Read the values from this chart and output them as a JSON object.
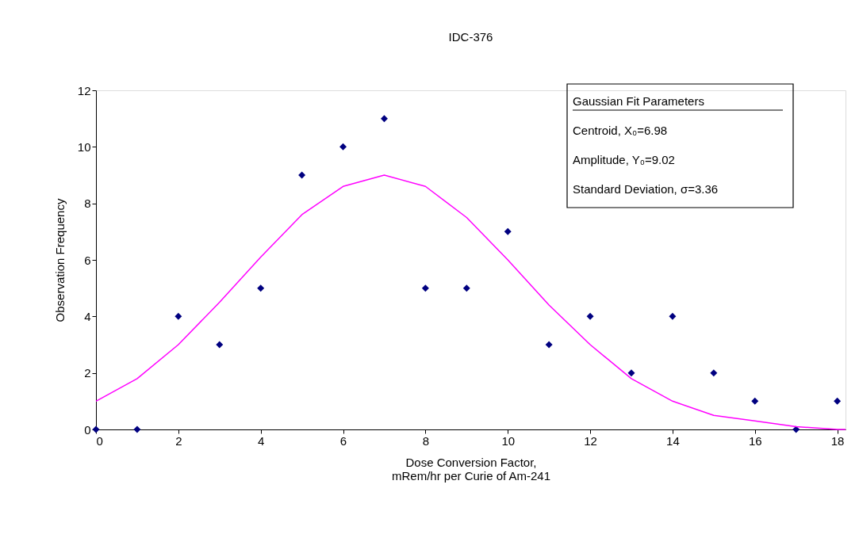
{
  "chart_data": {
    "type": "scatter",
    "title": "IDC-376",
    "xlabel": "Dose Conversion Factor,\nmRem/hr per Curie of Am-241",
    "ylabel": "Observation Frequency",
    "x": [
      0,
      1,
      2,
      3,
      4,
      5,
      6,
      7,
      8,
      9,
      10,
      11,
      12,
      13,
      14,
      15,
      16,
      17,
      18
    ],
    "series": [
      {
        "color": "#000080",
        "marker": "diamond",
        "values": [
          0,
          0,
          4,
          3,
          5,
          9,
          10,
          11,
          5,
          5,
          7,
          3,
          4,
          2,
          4,
          2,
          1,
          0,
          1
        ]
      },
      {
        "type": "line",
        "color": "#ff00ff",
        "marker": "none",
        "x": [
          0,
          1,
          2,
          3,
          4,
          5,
          6,
          7,
          8,
          9,
          10,
          11,
          12,
          13,
          14,
          15,
          16,
          17,
          18,
          18.2
        ],
        "values": [
          1.0,
          1.8,
          3.0,
          4.5,
          6.1,
          7.6,
          8.6,
          9.0,
          8.6,
          7.5,
          6.0,
          4.4,
          3.0,
          1.8,
          1.0,
          0.5,
          0.3,
          0.1,
          0.0,
          0.0
        ]
      }
    ],
    "xlim": [
      0,
      18.2
    ],
    "xticks": [
      0,
      2,
      4,
      6,
      8,
      10,
      12,
      14,
      16,
      18
    ],
    "ylim": [
      0,
      12
    ],
    "yticks": [
      0,
      2,
      4,
      6,
      8,
      10,
      12
    ],
    "grid": false,
    "annotations": [
      "Gaussian Fit Parameters",
      "Centroid, X₀=6.98",
      "Amplitude, Y₀=9.02",
      "Standard Deviation, σ=3.36"
    ]
  }
}
